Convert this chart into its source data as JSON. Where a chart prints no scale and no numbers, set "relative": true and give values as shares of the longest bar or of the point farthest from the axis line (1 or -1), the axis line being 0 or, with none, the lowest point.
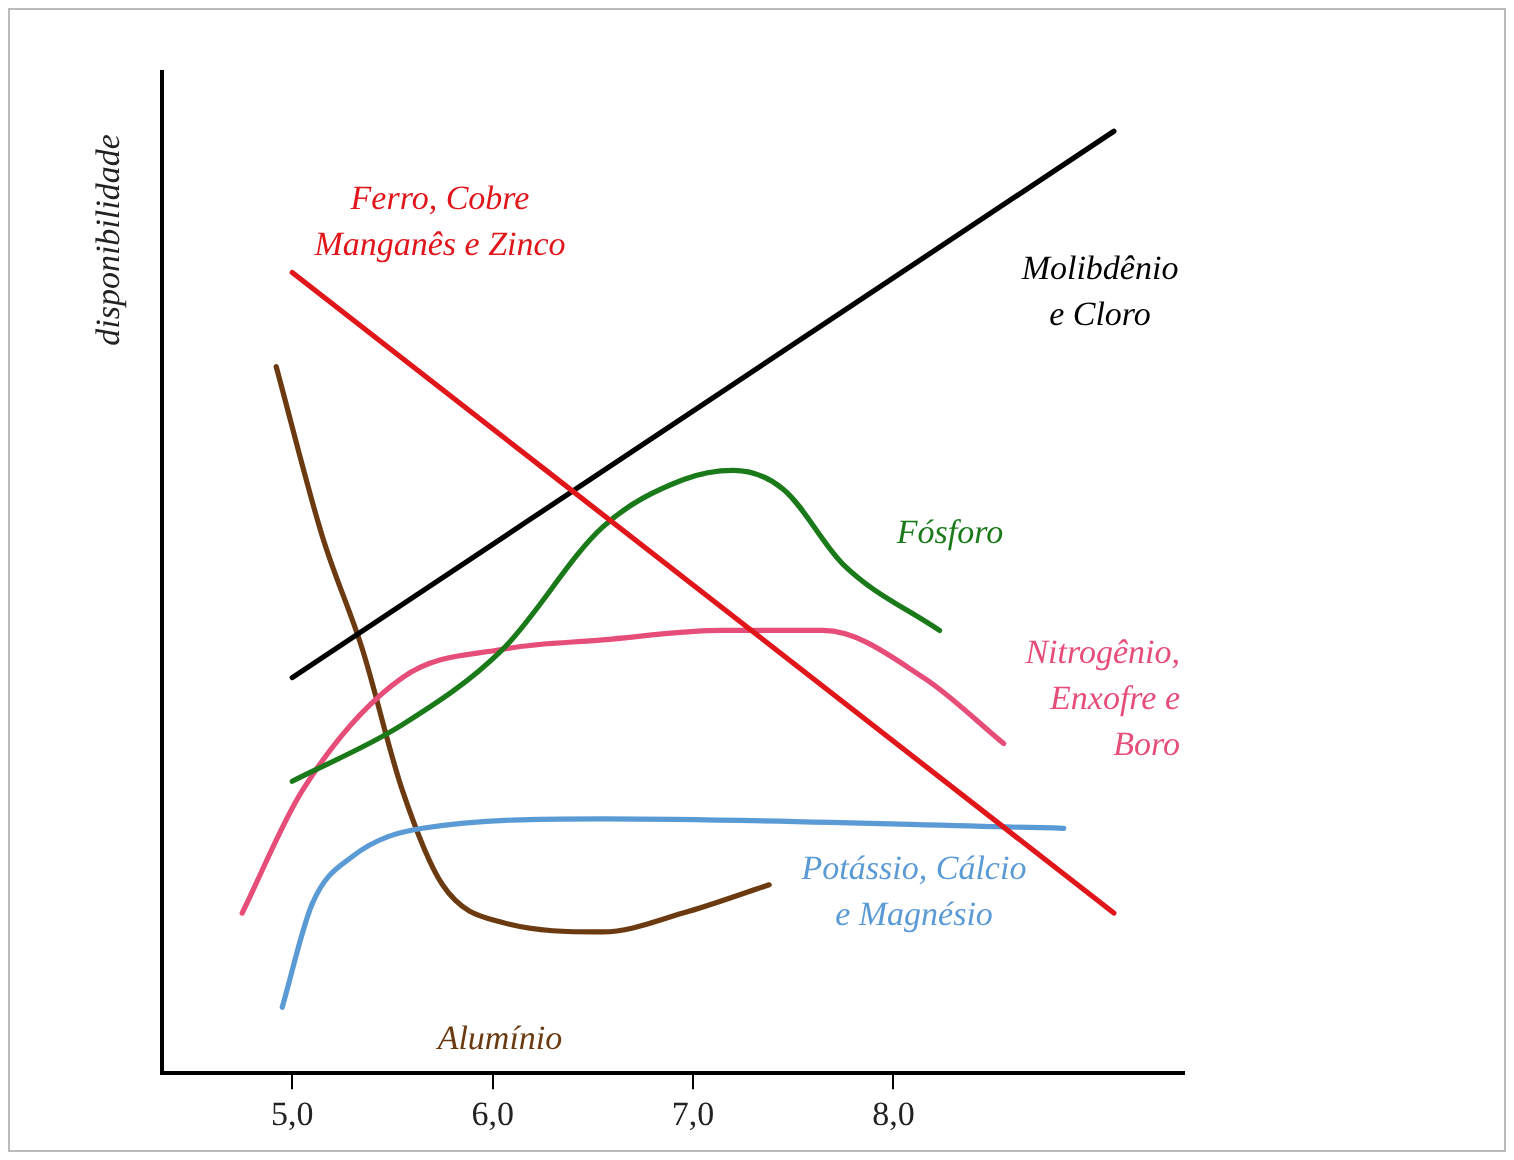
{
  "chart_data": {
    "type": "line",
    "ylabel": "disponibilidade",
    "relative": true,
    "legend": false,
    "grid": false,
    "tick_labels": "x",
    "marker": "none",
    "line_style": "solid",
    "xlim": [
      4.35,
      9.45
    ],
    "xticks": [
      {
        "value": 5,
        "label": "5,0"
      },
      {
        "value": 6,
        "label": "6,0"
      },
      {
        "value": 7,
        "label": "7,0"
      },
      {
        "value": 8,
        "label": "8,0"
      }
    ],
    "series": [
      {
        "name": "Ferro, Cobre Manganês e Zinco",
        "color": "#e0161b",
        "x": [
          5.0,
          9.1
        ],
        "values": [
          0.85,
          0.17
        ]
      },
      {
        "name": "Molibdênio e Cloro",
        "color": "#000000",
        "x": [
          5.0,
          9.1
        ],
        "values": [
          0.42,
          1.0
        ]
      },
      {
        "name": "Fósforo",
        "color": "#1a7a1a",
        "x": [
          5.0,
          5.55,
          6.05,
          6.55,
          6.95,
          7.2,
          7.45,
          7.75,
          8.23
        ],
        "values": [
          0.31,
          0.37,
          0.45,
          0.58,
          0.63,
          0.64,
          0.62,
          0.54,
          0.47
        ]
      },
      {
        "name": "Nitrogênio, Enxofre e Boro",
        "color": "#e64d79",
        "x": [
          4.75,
          5.05,
          5.55,
          6.05,
          6.55,
          7.15,
          7.65,
          8.15,
          8.55
        ],
        "values": [
          0.17,
          0.3,
          0.42,
          0.45,
          0.46,
          0.47,
          0.47,
          0.42,
          0.35
        ]
      },
      {
        "name": "Potássio, Cálcio e Magnésio",
        "color": "#5b9bd5",
        "x": [
          4.95,
          5.1,
          5.3,
          5.65,
          6.55,
          8.85
        ],
        "values": [
          0.07,
          0.18,
          0.23,
          0.26,
          0.27,
          0.26
        ]
      },
      {
        "name": "Alumínio",
        "color": "#6b3a10",
        "x": [
          4.92,
          5.15,
          5.35,
          5.55,
          5.75,
          6.05,
          6.55,
          6.95,
          7.38
        ],
        "values": [
          0.75,
          0.57,
          0.45,
          0.3,
          0.2,
          0.16,
          0.15,
          0.17,
          0.2
        ]
      }
    ]
  }
}
